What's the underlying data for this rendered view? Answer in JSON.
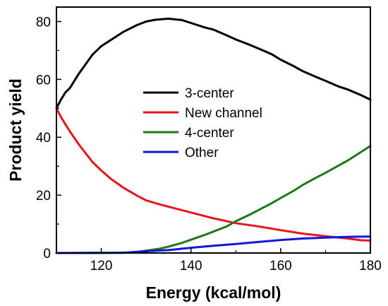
{
  "chart_data": {
    "type": "line",
    "xlabel": "Energy (kcal/mol)",
    "ylabel": "Product yield",
    "xlim": [
      110,
      180
    ],
    "ylim": [
      0,
      85
    ],
    "xticks": [
      120,
      140,
      160,
      180
    ],
    "yticks": [
      0,
      20,
      40,
      60,
      80
    ],
    "grid": false,
    "legend_position": "center",
    "series": [
      {
        "name": "3-center",
        "color": "#000000",
        "x": [
          110,
          111,
          112,
          113,
          115,
          118,
          120,
          122,
          125,
          128,
          130,
          132,
          135,
          138,
          140,
          143,
          145,
          148,
          150,
          153,
          155,
          158,
          160,
          163,
          165,
          168,
          170,
          173,
          175,
          178,
          180
        ],
        "y": [
          50,
          53,
          55.5,
          57,
          62,
          68.5,
          71.5,
          73.5,
          76.5,
          78.8,
          80,
          80.6,
          81,
          80.5,
          79.5,
          78,
          77.2,
          75.2,
          73.8,
          72,
          70.7,
          68.7,
          66.8,
          64.5,
          62.8,
          60.8,
          59.5,
          57.5,
          56.5,
          54.5,
          53
        ]
      },
      {
        "name": "New channel",
        "color": "#e8141e",
        "x": [
          110,
          111,
          112,
          113,
          115,
          118,
          120,
          122,
          125,
          128,
          130,
          133,
          135,
          138,
          140,
          145,
          150,
          155,
          160,
          165,
          170,
          175,
          178,
          180
        ],
        "y": [
          50,
          47,
          44.5,
          42,
          37.5,
          31.5,
          28.5,
          25.8,
          22.5,
          19.8,
          18.2,
          16.8,
          16,
          14.8,
          14,
          12,
          10.3,
          9.2,
          7.9,
          6.7,
          5.8,
          5,
          4.4,
          4.3
        ]
      },
      {
        "name": "4-center",
        "color": "#1c7a1c",
        "x": [
          110,
          120,
          125,
          128,
          130,
          133,
          135,
          138,
          140,
          143,
          145,
          148,
          150,
          153,
          155,
          158,
          160,
          163,
          165,
          168,
          170,
          173,
          175,
          178,
          180
        ],
        "y": [
          0,
          0,
          0.1,
          0.4,
          0.8,
          1.5,
          2.2,
          3.5,
          4.6,
          6.2,
          7.4,
          9.2,
          11,
          13.2,
          14.8,
          17.2,
          19,
          21.6,
          23.6,
          26.1,
          27.7,
          30.3,
          32,
          35,
          37
        ]
      },
      {
        "name": "Other",
        "color": "#1515e0",
        "x": [
          110,
          125,
          130,
          135,
          138,
          140,
          145,
          150,
          155,
          160,
          165,
          170,
          175,
          180
        ],
        "y": [
          0,
          0.1,
          0.6,
          1,
          1.5,
          1.8,
          2.5,
          3.1,
          3.8,
          4.5,
          5,
          5.3,
          5.6,
          5.7
        ]
      }
    ]
  }
}
